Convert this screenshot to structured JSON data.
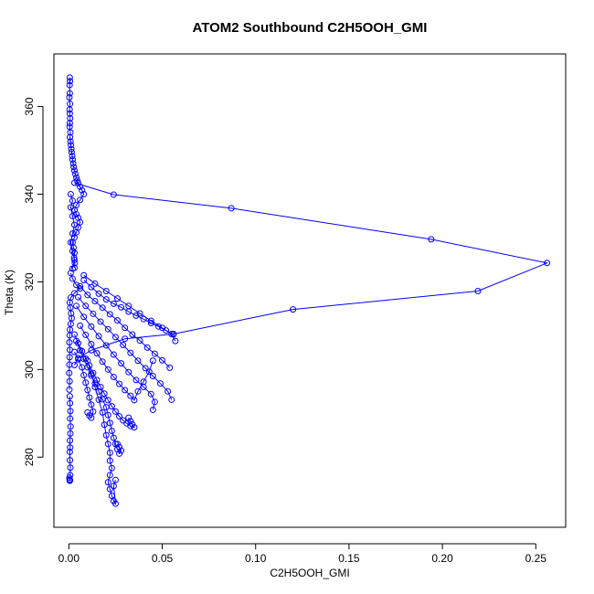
{
  "chart_data": {
    "type": "line",
    "title": "ATOM2 Southbound C2H5OOH_GMI",
    "xlabel": "C2H5OOH_GMI",
    "ylabel": "Theta (K)",
    "xlim": [
      -0.008,
      0.266
    ],
    "ylim": [
      264,
      372
    ],
    "xticks": [
      0.0,
      0.05,
      0.1,
      0.15,
      0.2,
      0.25
    ],
    "xtick_labels": [
      "0.00",
      "0.05",
      "0.10",
      "0.15",
      "0.20",
      "0.25"
    ],
    "yticks": [
      280,
      300,
      320,
      340,
      360
    ],
    "ytick_labels": [
      "280",
      "300",
      "320",
      "340",
      "360"
    ],
    "grid": false,
    "legend": "none",
    "series_color": "#0000ff",
    "marker": "open-circle",
    "series": [
      {
        "x": [
          0.0005,
          0.0006,
          0.0004,
          0.0005,
          0.0003,
          0.0006,
          0.0004,
          0.0005,
          0.0007,
          0.0005,
          0.0004,
          0.0008,
          0.0006,
          0.0009,
          0.0011,
          0.0013,
          0.0015,
          0.0018,
          0.002,
          0.0023,
          0.0026,
          0.003,
          0.0035,
          0.004,
          0.0045,
          0.005,
          0.006,
          0.007,
          0.008,
          0.006,
          0.004,
          0.003,
          0.004,
          0.005,
          0.006,
          0.005,
          0.004,
          0.003,
          0.002,
          0.0025,
          0.003,
          0.0028,
          0.0032,
          0.003
        ],
        "y": [
          366.6,
          365.8,
          364.9,
          363.0,
          362.1,
          360.6,
          359.3,
          358.4,
          357.3,
          356.2,
          355.4,
          354.1,
          353.0,
          352.0,
          351.2,
          350.3,
          349.6,
          348.7,
          347.9,
          347.0,
          346.2,
          345.4,
          344.6,
          343.8,
          343.1,
          342.5,
          341.7,
          340.9,
          340.0,
          338.7,
          337.5,
          336.4,
          335.4,
          334.6,
          333.6,
          332.4,
          331.3,
          330.1,
          329.0,
          327.8,
          326.6,
          325.5,
          324.3,
          323.2
        ]
      },
      {
        "x": [
          0.003,
          0.024,
          0.087,
          0.194,
          0.256,
          0.219,
          0.12,
          0.056,
          0.03,
          0.012,
          0.005,
          0.003
        ],
        "y": [
          342.6,
          339.9,
          336.8,
          329.7,
          324.3,
          317.9,
          313.7,
          308.1,
          307.0,
          304.4,
          302.6,
          301.0
        ]
      },
      {
        "x": [
          0.001,
          0.002,
          0.004,
          0.006,
          0.003,
          0.001,
          0.0005,
          0.0008,
          0.0012,
          0.0015,
          0.001,
          0.0006,
          0.0004,
          0.0003,
          0.0005,
          0.0004,
          0.0003,
          0.0002,
          0.0004,
          0.0003
        ],
        "y": [
          322.0,
          320.7,
          319.3,
          318.5,
          317.4,
          316.4,
          315.3,
          314.1,
          312.8,
          311.7,
          310.4,
          309.1,
          307.8,
          306.2,
          304.5,
          302.8,
          301.1,
          299.2,
          297.3,
          295.4
        ]
      },
      {
        "x": [
          0.0005,
          0.0006,
          0.0008,
          0.0007,
          0.0009,
          0.0008,
          0.0006,
          0.0007,
          0.0005,
          0.0006,
          0.0008,
          0.0007,
          0.0006,
          0.0005,
          0.0004,
          0.0003
        ],
        "y": [
          293.9,
          292.3,
          290.5,
          288.8,
          287.0,
          285.4,
          283.8,
          282.2,
          281.2,
          279.3,
          277.6,
          275.9,
          274.8,
          274.6,
          274.9,
          275.3
        ]
      },
      {
        "x": [
          0.008,
          0.012,
          0.016,
          0.02,
          0.024,
          0.028,
          0.032,
          0.036,
          0.04,
          0.044,
          0.048,
          0.052,
          0.056
        ],
        "y": [
          320.4,
          318.8,
          317.3,
          316.0,
          315.0,
          314.2,
          313.2,
          312.3,
          311.5,
          310.6,
          309.8,
          308.9,
          308.0
        ]
      },
      {
        "x": [
          0.006,
          0.01,
          0.014,
          0.018,
          0.022,
          0.026,
          0.03,
          0.034,
          0.038,
          0.042,
          0.046,
          0.05,
          0.054
        ],
        "y": [
          319.0,
          317.0,
          315.6,
          314.1,
          312.6,
          311.2,
          309.5,
          308.0,
          306.6,
          305.0,
          303.6,
          302.1,
          300.4
        ]
      },
      {
        "x": [
          0.005,
          0.009,
          0.013,
          0.017,
          0.021,
          0.025,
          0.029,
          0.033,
          0.037,
          0.041,
          0.045,
          0.049,
          0.053,
          0.055
        ],
        "y": [
          316.5,
          314.5,
          312.7,
          310.9,
          309.2,
          307.4,
          305.6,
          303.8,
          302.0,
          300.3,
          298.5,
          296.8,
          295.0,
          293.1
        ]
      },
      {
        "x": [
          0.004,
          0.008,
          0.012,
          0.016,
          0.02,
          0.024,
          0.028,
          0.032,
          0.036,
          0.04,
          0.044,
          0.046,
          0.045
        ],
        "y": [
          314.5,
          312.0,
          309.8,
          307.6,
          305.5,
          303.4,
          301.4,
          299.4,
          297.6,
          296.0,
          294.4,
          292.6,
          290.8
        ]
      },
      {
        "x": [
          0.006,
          0.009,
          0.012,
          0.015,
          0.018,
          0.021,
          0.024,
          0.027,
          0.03,
          0.033,
          0.035,
          0.037,
          0.04,
          0.043,
          0.045
        ],
        "y": [
          310.0,
          307.9,
          305.8,
          303.7,
          301.8,
          300.0,
          298.3,
          296.7,
          295.3,
          294.0,
          293.0,
          295.0,
          297.2,
          299.5,
          302.0
        ]
      },
      {
        "x": [
          0.003,
          0.005,
          0.007,
          0.009,
          0.011,
          0.013,
          0.015,
          0.017,
          0.019,
          0.021,
          0.023,
          0.025,
          0.027,
          0.029,
          0.031,
          0.033,
          0.035,
          0.034,
          0.033,
          0.032
        ],
        "y": [
          308.0,
          306.0,
          304.2,
          302.5,
          300.9,
          299.2,
          297.6,
          296.0,
          294.5,
          293.0,
          291.6,
          290.4,
          289.3,
          288.4,
          287.7,
          287.1,
          286.8,
          287.5,
          288.2,
          289.0
        ]
      },
      {
        "x": [
          0.004,
          0.006,
          0.008,
          0.01,
          0.012,
          0.014,
          0.016,
          0.018,
          0.02,
          0.021,
          0.022,
          0.023,
          0.024,
          0.025,
          0.026,
          0.027,
          0.028,
          0.027,
          0.026
        ],
        "y": [
          306.5,
          304.4,
          302.4,
          300.5,
          298.6,
          296.8,
          295.0,
          293.2,
          291.4,
          289.6,
          287.8,
          286.0,
          284.4,
          283.0,
          281.8,
          280.8,
          281.5,
          282.3,
          283.0
        ]
      },
      {
        "x": [
          0.01,
          0.012,
          0.014,
          0.016,
          0.018,
          0.019,
          0.02,
          0.021,
          0.022,
          0.022,
          0.023,
          0.022,
          0.021,
          0.022,
          0.023,
          0.024,
          0.025,
          0.024,
          0.025
        ],
        "y": [
          302.0,
          299.0,
          296.0,
          293.1,
          290.2,
          287.4,
          285.0,
          283.0,
          281.0,
          279.2,
          277.5,
          275.9,
          274.3,
          272.7,
          271.2,
          270.0,
          269.4,
          273.4,
          274.8
        ]
      },
      {
        "x": [
          0.003,
          0.005,
          0.007,
          0.008,
          0.009,
          0.01,
          0.011,
          0.012,
          0.013,
          0.012,
          0.011,
          0.01
        ],
        "y": [
          304.0,
          302.3,
          300.5,
          298.7,
          297.0,
          295.3,
          293.6,
          292.0,
          290.4,
          289.0,
          289.5,
          290.2
        ]
      },
      {
        "x": [
          0.008,
          0.014,
          0.02,
          0.026,
          0.032,
          0.038,
          0.044,
          0.05,
          0.055,
          0.057
        ],
        "y": [
          321.5,
          319.6,
          317.9,
          316.2,
          314.5,
          312.8,
          311.1,
          309.5,
          308.1,
          306.5
        ]
      },
      {
        "x": [
          0.002,
          0.003,
          0.002,
          0.001,
          0.002,
          0.003,
          0.002,
          0.001,
          0.002,
          0.001
        ],
        "y": [
          323.0,
          325.0,
          327.0,
          329.0,
          331.0,
          333.0,
          335.0,
          337.0,
          338.5,
          340.0
        ]
      }
    ]
  }
}
